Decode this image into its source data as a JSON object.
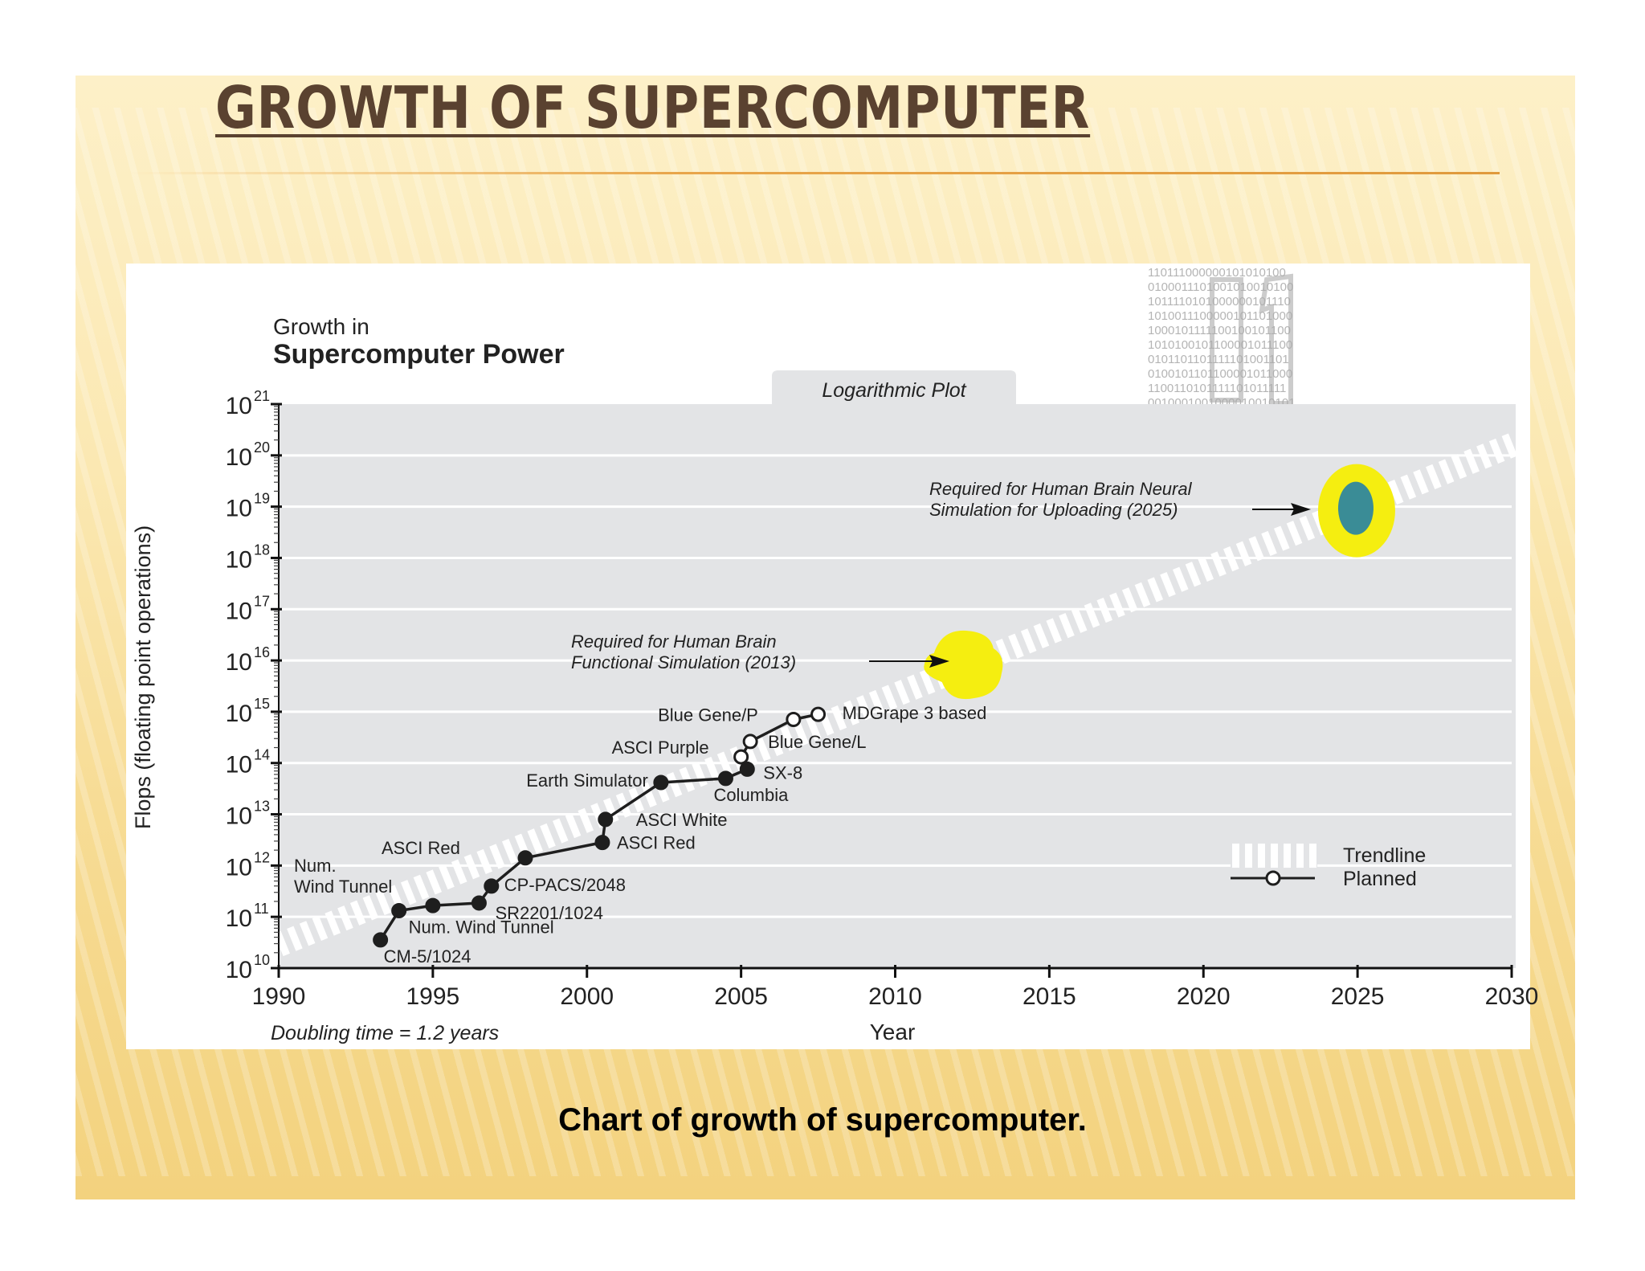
{
  "slide": {
    "title": "GROWTH OF SUPERCOMPUTER",
    "caption": "Chart of growth of supercomputer."
  },
  "chart_data": {
    "type": "line",
    "title_line1": "Growth in",
    "title_line2": "Supercomputer Power",
    "plot_tag": "Logarithmic Plot",
    "xlabel": "Year",
    "ylabel": "Flops (floating point operations)",
    "footnote": "Doubling time = 1.2 years",
    "log_scale_y": true,
    "xlim": [
      1990,
      2030
    ],
    "ylim_exponent": [
      10,
      21
    ],
    "x_ticks": [
      "1990",
      "1995",
      "2000",
      "2005",
      "2010",
      "2015",
      "2020",
      "2025",
      "2030"
    ],
    "y_tick_base": "10",
    "y_tick_exponents": [
      "10",
      "11",
      "12",
      "13",
      "14",
      "15",
      "16",
      "17",
      "18",
      "19",
      "20",
      "21"
    ],
    "legend": {
      "position": "right",
      "trendline": "Trendline",
      "planned": "Planned"
    },
    "trendline": {
      "x": [
        1990,
        2030
      ],
      "log10_flops": [
        10.45,
        20.2
      ]
    },
    "series": [
      {
        "points": [
          {
            "x": 1993.3,
            "log10": 10.55,
            "label": "CM-5/1024",
            "planned": false
          },
          {
            "x": 1993.9,
            "log10": 11.12,
            "label": "Num. Wind Tunnel",
            "planned": false
          },
          {
            "x": 1995.0,
            "log10": 11.22,
            "label": "",
            "planned": false
          },
          {
            "x": 1996.5,
            "log10": 11.27,
            "label": "SR2201/1024",
            "planned": false
          },
          {
            "x": 1996.9,
            "log10": 11.6,
            "label": "CP-PACS/2048",
            "planned": false
          },
          {
            "x": 1998.0,
            "log10": 12.15,
            "label": "",
            "planned": false
          },
          {
            "x": 2000.5,
            "log10": 12.45,
            "label": "ASCI Red",
            "planned": false
          },
          {
            "x": 2000.6,
            "log10": 12.9,
            "label": "ASCI White",
            "planned": false
          },
          {
            "x": 2002.4,
            "log10": 13.62,
            "label": "Earth Simulator",
            "planned": false
          },
          {
            "x": 2004.5,
            "log10": 13.7,
            "label": "Columbia",
            "planned": false
          },
          {
            "x": 2005.2,
            "log10": 13.88,
            "label": "SX-8",
            "planned": false
          },
          {
            "x": 2005.0,
            "log10": 14.12,
            "label": "ASCI Purple",
            "planned": true
          },
          {
            "x": 2005.3,
            "log10": 14.42,
            "label": "Blue Gene/L",
            "planned": true
          },
          {
            "x": 2006.7,
            "log10": 14.85,
            "label": "Blue Gene/P",
            "planned": true
          },
          {
            "x": 2007.5,
            "log10": 14.95,
            "label": "MDGrape 3 based",
            "planned": true
          }
        ]
      }
    ],
    "annotations": [
      {
        "x_label": "Num.",
        "line2": "Wind Tunnel"
      },
      {
        "x_label": "ASCI Red"
      }
    ],
    "targets": [
      {
        "year": 2013,
        "log10": 16.0,
        "line1": "Required for Human Brain",
        "line2": "Functional Simulation (2013)"
      },
      {
        "year": 2025,
        "log10": 19.0,
        "line1": "Required for Human Brain Neural",
        "line2": "Simulation for Uploading (2025)"
      }
    ],
    "colors": {
      "plot_bg": "#e3e4e6",
      "line": "#1e1e1e",
      "highlight": "#f5ee10",
      "target_fill": "#3a8c96"
    }
  }
}
